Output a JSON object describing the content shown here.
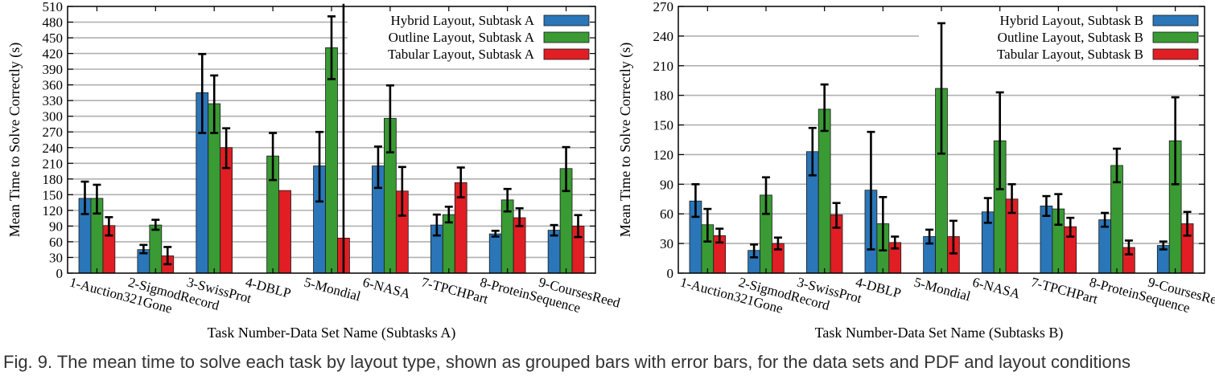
{
  "caption": "Fig. 9. The mean time to solve each task by layout type, shown as grouped bars with error bars, for the data sets and PDF and layout conditions",
  "colors": {
    "Hybrid": "#2a76b8",
    "Outline": "#3a9a34",
    "Tabular": "#e01e24"
  },
  "chart_data": [
    {
      "type": "bar",
      "xlabel": "Task Number-Data Set Name (Subtasks A)",
      "ylabel": "Mean Time to Solve Correctly (s)",
      "ylim": [
        0,
        510
      ],
      "yticks": [
        0,
        30,
        60,
        90,
        120,
        150,
        180,
        210,
        240,
        270,
        300,
        330,
        360,
        390,
        420,
        450,
        480,
        510
      ],
      "grid": "horizontal",
      "legend_position": "top-right",
      "categories": [
        "1-Auction321Gone",
        "2-SigmodRecord",
        "3-SwissProt",
        "4-DBLP",
        "5-Mondial",
        "6-NASA",
        "7-TPCHPart",
        "8-ProteinSequence",
        "9-CoursesReed"
      ],
      "series": [
        {
          "name": "Hybrid Layout, Subtask A",
          "color": "#2a76b8",
          "values": [
            143,
            45,
            345,
            null,
            205,
            205,
            92,
            75,
            82
          ],
          "err_low": [
            113,
            38,
            268,
            null,
            137,
            163,
            72,
            70,
            72
          ],
          "err_high": [
            175,
            54,
            419,
            null,
            270,
            242,
            112,
            81,
            92
          ]
        },
        {
          "name": "Outline Layout, Subtask A",
          "color": "#3a9a34",
          "values": [
            143,
            92,
            324,
            224,
            431,
            296,
            112,
            140,
            200
          ],
          "err_low": [
            114,
            83,
            268,
            178,
            371,
            231,
            97,
            118,
            157
          ],
          "err_high": [
            169,
            102,
            378,
            268,
            491,
            359,
            127,
            161,
            241
          ]
        },
        {
          "name": "Tabular Layout, Subtask A",
          "color": "#e01e24",
          "values": [
            91,
            33,
            240,
            158,
            67,
            157,
            173,
            106,
            90
          ],
          "err_low": [
            72,
            17,
            201,
            158,
            0,
            110,
            145,
            90,
            69
          ],
          "err_high": [
            107,
            50,
            277,
            158,
            515,
            203,
            202,
            124,
            111
          ]
        }
      ]
    },
    {
      "type": "bar",
      "xlabel": "Task Number-Data Set Name (Subtasks B)",
      "ylabel": "Mean Time to Solve Correctly (s)",
      "ylim": [
        0,
        270
      ],
      "yticks": [
        0,
        30,
        60,
        90,
        120,
        150,
        180,
        210,
        240,
        270
      ],
      "grid": "horizontal",
      "legend_position": "top-right",
      "categories": [
        "1-Auction321Gone",
        "2-SigmodRecord",
        "3-SwissProt",
        "4-DBLP",
        "5-Mondial",
        "6-NASA",
        "7-TPCHPart",
        "8-ProteinSequence",
        "9-CoursesReed"
      ],
      "series": [
        {
          "name": "Hybrid Layout, Subtask B",
          "color": "#2a76b8",
          "values": [
            73,
            23,
            123,
            84,
            37,
            62,
            68,
            54,
            28
          ],
          "err_low": [
            57,
            16,
            99,
            24,
            30,
            51,
            58,
            47,
            24
          ],
          "err_high": [
            90,
            29,
            147,
            143,
            44,
            76,
            78,
            61,
            32
          ]
        },
        {
          "name": "Outline Layout, Subtask B",
          "color": "#3a9a34",
          "values": [
            49,
            79,
            166,
            50,
            187,
            134,
            65,
            109,
            134
          ],
          "err_low": [
            32,
            60,
            144,
            23,
            121,
            85,
            49,
            92,
            90
          ],
          "err_high": [
            65,
            97,
            191,
            77,
            253,
            183,
            80,
            126,
            178
          ]
        },
        {
          "name": "Tabular Layout, Subtask B",
          "color": "#e01e24",
          "values": [
            38,
            30,
            59,
            31,
            37,
            75,
            47,
            26,
            50
          ],
          "err_low": [
            31,
            24,
            46,
            25,
            20,
            61,
            37,
            19,
            38
          ],
          "err_high": [
            45,
            36,
            71,
            37,
            53,
            90,
            56,
            33,
            62
          ]
        }
      ]
    }
  ]
}
